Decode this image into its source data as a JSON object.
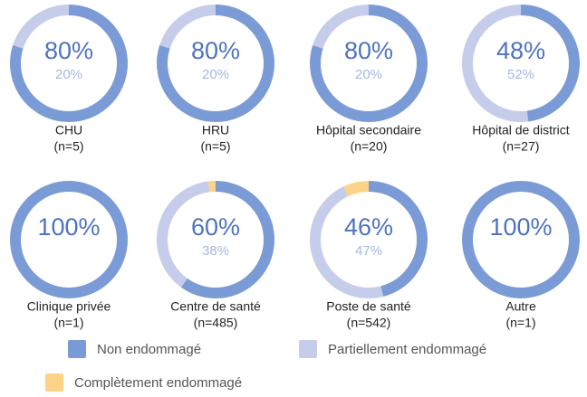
{
  "chart_data": [
    {
      "type": "donut",
      "title": "CHU",
      "subtitle": "(n=5)",
      "categories": [
        "Non endommagé",
        "Partiellement endommagé",
        "Complètement endommagé"
      ],
      "colors": [
        "#7b9bd6",
        "#c5cdea",
        "#fdd387"
      ],
      "values": [
        80,
        20,
        0
      ],
      "value_labels": [
        "80%",
        "20%",
        null
      ]
    },
    {
      "type": "donut",
      "title": "HRU",
      "subtitle": "(n=5)",
      "categories": [
        "Non endommagé",
        "Partiellement endommagé",
        "Complètement endommagé"
      ],
      "colors": [
        "#7b9bd6",
        "#c5cdea",
        "#fdd387"
      ],
      "values": [
        80,
        20,
        0
      ],
      "value_labels": [
        "80%",
        "20%",
        null
      ]
    },
    {
      "type": "donut",
      "title": "Hôpital secondaire",
      "subtitle": "(n=20)",
      "categories": [
        "Non endommagé",
        "Partiellement endommagé",
        "Complètement endommagé"
      ],
      "colors": [
        "#7b9bd6",
        "#c5cdea",
        "#fdd387"
      ],
      "values": [
        80,
        20,
        0
      ],
      "value_labels": [
        "80%",
        "20%",
        null
      ]
    },
    {
      "type": "donut",
      "title": "Hôpital de district",
      "subtitle": "(n=27)",
      "categories": [
        "Non endommagé",
        "Partiellement endommagé",
        "Complètement endommagé"
      ],
      "colors": [
        "#7b9bd6",
        "#c5cdea",
        "#fdd387"
      ],
      "values": [
        48,
        52,
        0
      ],
      "value_labels": [
        "48%",
        "52%",
        null
      ]
    },
    {
      "type": "donut",
      "title": "Clinique privée",
      "subtitle": "(n=1)",
      "categories": [
        "Non endommagé",
        "Partiellement endommagé",
        "Complètement endommagé"
      ],
      "colors": [
        "#7b9bd6",
        "#c5cdea",
        "#fdd387"
      ],
      "values": [
        100,
        0,
        0
      ],
      "value_labels": [
        "100%",
        null,
        null
      ]
    },
    {
      "type": "donut",
      "title": "Centre de santé",
      "subtitle": "(n=485)",
      "categories": [
        "Non endommagé",
        "Partiellement endommagé",
        "Complètement endommagé"
      ],
      "colors": [
        "#7b9bd6",
        "#c5cdea",
        "#fdd387"
      ],
      "values": [
        60,
        38,
        2
      ],
      "value_labels": [
        "60%",
        "38%",
        null
      ]
    },
    {
      "type": "donut",
      "title": "Poste de santé",
      "subtitle": "(n=542)",
      "categories": [
        "Non endommagé",
        "Partiellement endommagé",
        "Complètement endommagé"
      ],
      "colors": [
        "#7b9bd6",
        "#c5cdea",
        "#fdd387"
      ],
      "values": [
        46,
        47,
        7
      ],
      "value_labels": [
        "46%",
        "47%",
        null
      ]
    },
    {
      "type": "donut",
      "title": "Autre",
      "subtitle": "(n=1)",
      "categories": [
        "Non endommagé",
        "Partiellement endommagé",
        "Complètement endommagé"
      ],
      "colors": [
        "#7b9bd6",
        "#c5cdea",
        "#fdd387"
      ],
      "values": [
        100,
        0,
        0
      ],
      "value_labels": [
        "100%",
        null,
        null
      ]
    }
  ]
}
